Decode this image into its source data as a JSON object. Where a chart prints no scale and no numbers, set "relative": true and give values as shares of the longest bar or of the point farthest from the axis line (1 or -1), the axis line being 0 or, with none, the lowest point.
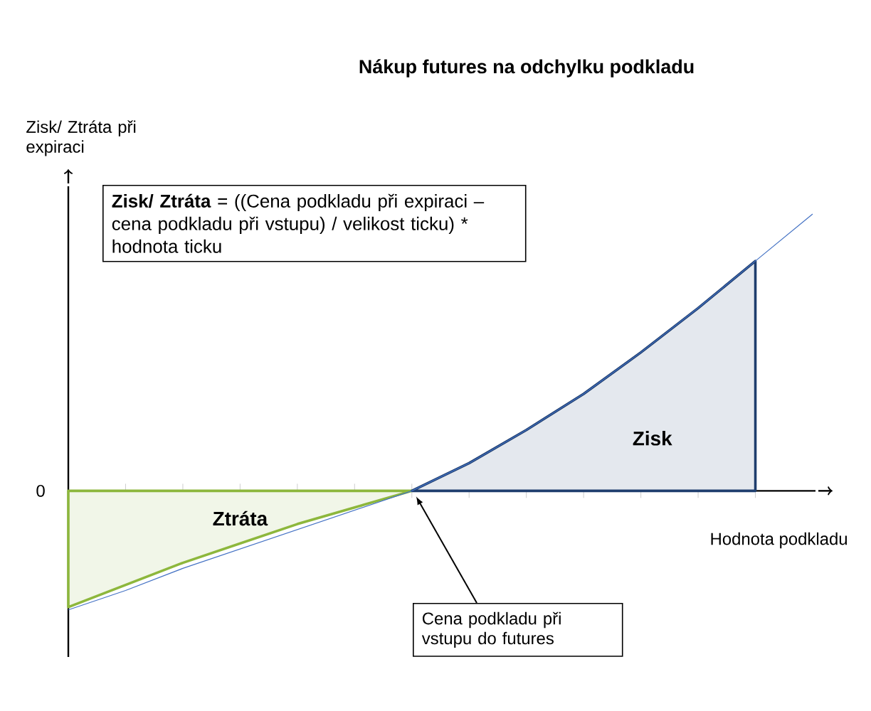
{
  "chart_data": {
    "type": "area",
    "relative": true,
    "title": "Nákup futures na odchylku podkladu",
    "xlabel": "Hodnota podkladu",
    "ylabel": "Zisk/ Ztráta při expiraci",
    "categories": [
      null,
      null,
      null,
      null,
      null,
      null,
      null,
      null,
      null,
      null,
      null,
      null,
      null,
      null
    ],
    "series": [
      {
        "name": "Ztráta",
        "color": "#8db73c",
        "values": [
          -0.42,
          -0.34,
          -0.26,
          -0.19,
          -0.12,
          -0.06,
          0,
          null,
          null,
          null,
          null,
          null,
          null,
          null
        ]
      },
      {
        "name": "Zisk",
        "color": "#1f3e6e",
        "values": [
          null,
          null,
          null,
          null,
          null,
          null,
          0,
          0.1,
          0.22,
          0.35,
          0.5,
          0.66,
          0.83,
          null
        ]
      },
      {
        "type": "line",
        "color": "#4472c4",
        "values": [
          -0.43,
          -0.36,
          -0.28,
          -0.21,
          -0.14,
          -0.07,
          0,
          0.1,
          0.22,
          0.35,
          0.5,
          0.66,
          0.83,
          1.0
        ]
      }
    ],
    "annotations": [
      "**Zisk/ Ztráta** = ((Cena podkladu při expiraci – cena podkladu při vstupu) / velikost ticku) * hodnota ticku",
      "0",
      "Cena podkladu při vstupu do futures"
    ]
  }
}
